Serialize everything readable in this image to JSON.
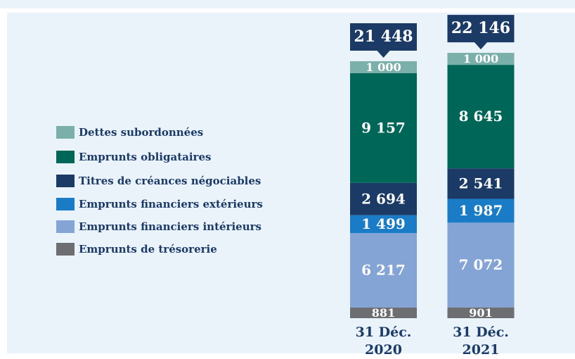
{
  "chart_data": {
    "type": "stacked-bar",
    "categories": [
      "31 Déc. 2020",
      "31 Déc. 2021"
    ],
    "series": [
      {
        "name": "Emprunts de trésorerie",
        "color": "#6d6e71",
        "values": [
          881,
          901
        ],
        "value_labels": [
          "881",
          "901"
        ]
      },
      {
        "name": "Emprunts financiers intérieurs",
        "color": "#84a4d6",
        "values": [
          6217,
          7072
        ],
        "value_labels": [
          "6 217",
          "7 072"
        ]
      },
      {
        "name": "Emprunts financiers extérieurs",
        "color": "#1a7cc6",
        "values": [
          1499,
          1987
        ],
        "value_labels": [
          "1 499",
          "1 987"
        ]
      },
      {
        "name": "Titres de créances négociables",
        "color": "#1b3a66",
        "values": [
          2694,
          2541
        ],
        "value_labels": [
          "2 694",
          "2 541"
        ]
      },
      {
        "name": "Emprunts obligataires",
        "color": "#006658",
        "values": [
          9157,
          8645
        ],
        "value_labels": [
          "9 157",
          "8 645"
        ]
      },
      {
        "name": "Dettes subordonnées",
        "color": "#7aafaa",
        "values": [
          1000,
          1000
        ],
        "value_labels": [
          "1 000",
          "1 000"
        ]
      }
    ],
    "totals": [
      21448,
      22146
    ],
    "total_labels": [
      "21 448",
      "22 146"
    ],
    "total_color": "#1b3a66"
  }
}
